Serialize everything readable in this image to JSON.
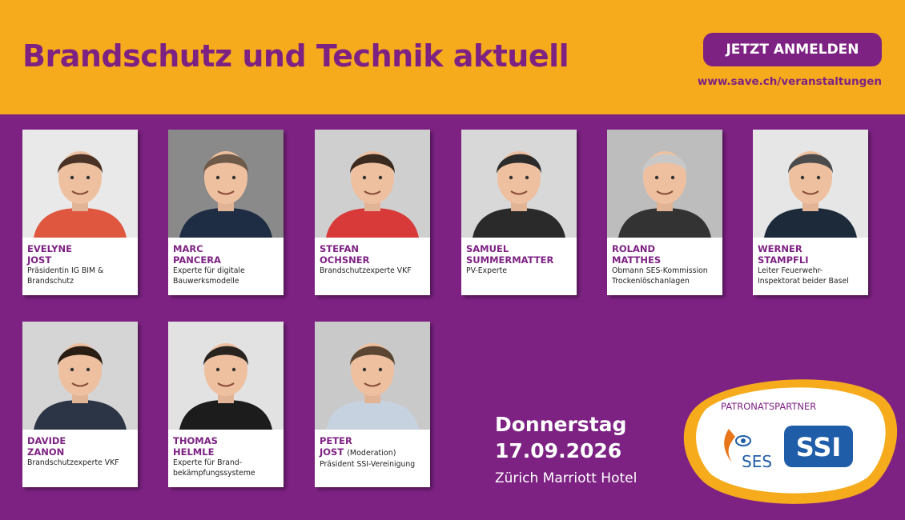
{
  "header": {
    "title": "Brandschutz und Technik aktuell",
    "button": "JETZT ANMELDEN",
    "url": "www.save.ch/veranstaltungen"
  },
  "speakers": [
    {
      "first": "EVELYNE",
      "last": "JOST",
      "role": [
        "Präsidentin IG BIM &",
        "Brandschutz"
      ]
    },
    {
      "first": "MARC",
      "last": "PANCERA",
      "role": [
        "Experte für digitale",
        "Bauwerksmodelle"
      ]
    },
    {
      "first": "STEFAN",
      "last": "OCHSNER",
      "role": [
        "Brandschutzexperte VKF"
      ]
    },
    {
      "first": "SAMUEL",
      "last": "SUMMERMATTER",
      "role": [
        "PV-Experte"
      ]
    },
    {
      "first": "ROLAND",
      "last": "MATTHES",
      "role": [
        "Obmann SES-Kommission",
        "Trockenlöschanlagen"
      ]
    },
    {
      "first": "WERNER",
      "last": "STAMPFLI",
      "role": [
        "Leiter Feuerwehr-",
        "Inspektorat beider Basel"
      ]
    },
    {
      "first": "DAVIDE",
      "last": "ZANON",
      "role": [
        "Brandschutzexperte VKF"
      ]
    },
    {
      "first": "THOMAS",
      "last": "HELMLE",
      "role": [
        "Experte für Brand-",
        "bekämpfungssysteme"
      ]
    },
    {
      "first": "PETER",
      "last": "JOST",
      "note": "(Moderation)",
      "role": [
        "Präsident SSI-Vereinigung"
      ]
    }
  ],
  "event": {
    "day": "Donnerstag",
    "date": "17.09.2026",
    "venue": "Zürich Marriott Hotel"
  },
  "partners": {
    "label": "PATRONATSPARTNER",
    "logos": [
      "SES",
      "SSI"
    ]
  }
}
